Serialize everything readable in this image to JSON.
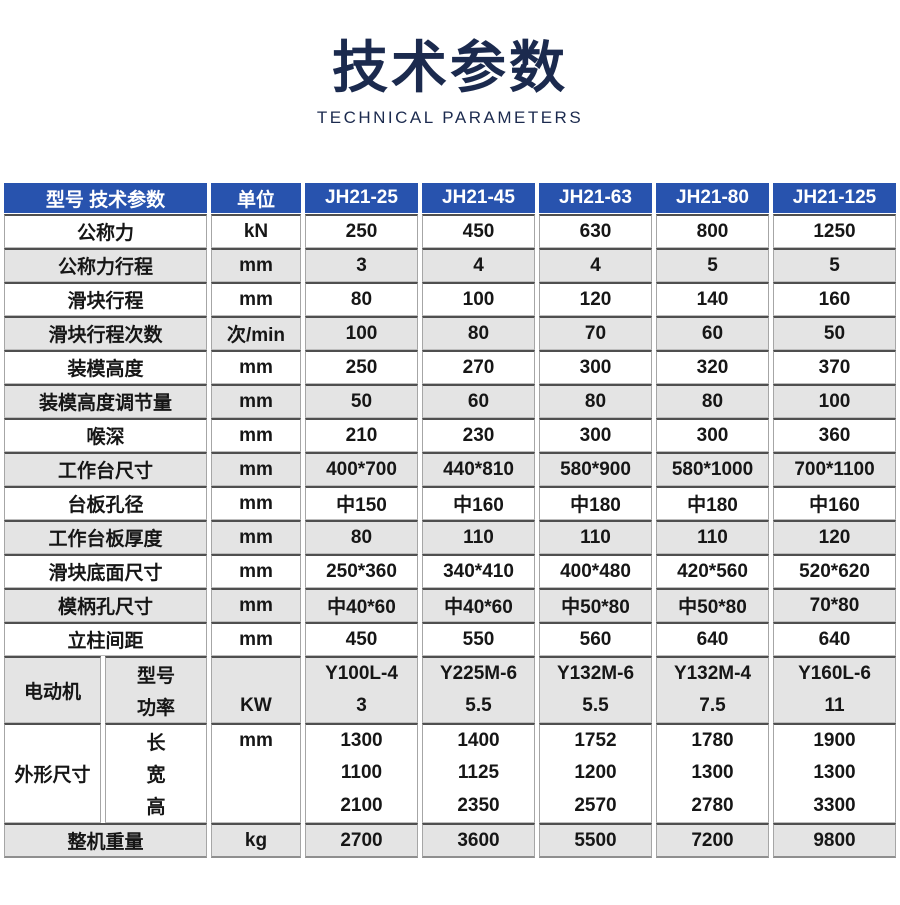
{
  "title": {
    "zh": "技术参数",
    "en": "TECHNICAL PARAMETERS"
  },
  "colors": {
    "header_blue": "#2853ae",
    "title_navy": "#1b2a4e",
    "row_gray": "#e4e4e4",
    "row_separator_dark": "#4f4f4f",
    "column_line_gray": "#a6a6a6"
  },
  "table": {
    "header": {
      "param_label": "型号 技术参数",
      "unit_label": "单位",
      "models": [
        "JH21-25",
        "JH21-45",
        "JH21-63",
        "JH21-80",
        "JH21-125"
      ]
    },
    "rows": [
      {
        "label": "公称力",
        "unit": "kN",
        "values": [
          "250",
          "450",
          "630",
          "800",
          "1250"
        ]
      },
      {
        "label": "公称力行程",
        "unit": "mm",
        "values": [
          "3",
          "4",
          "4",
          "5",
          "5"
        ]
      },
      {
        "label": "滑块行程",
        "unit": "mm",
        "values": [
          "80",
          "100",
          "120",
          "140",
          "160"
        ]
      },
      {
        "label": "滑块行程次数",
        "unit": "次/min",
        "values": [
          "100",
          "80",
          "70",
          "60",
          "50"
        ]
      },
      {
        "label": "装模高度",
        "unit": "mm",
        "values": [
          "250",
          "270",
          "300",
          "320",
          "370"
        ]
      },
      {
        "label": "装模高度调节量",
        "unit": "mm",
        "values": [
          "50",
          "60",
          "80",
          "80",
          "100"
        ]
      },
      {
        "label": "喉深",
        "unit": "mm",
        "values": [
          "210",
          "230",
          "300",
          "300",
          "360"
        ]
      },
      {
        "label": "工作台尺寸",
        "unit": "mm",
        "values": [
          "400*700",
          "440*810",
          "580*900",
          "580*1000",
          "700*1100"
        ]
      },
      {
        "label": "台板孔径",
        "unit": "mm",
        "values": [
          "中150",
          "中160",
          "中180",
          "中180",
          "中160"
        ]
      },
      {
        "label": "工作台板厚度",
        "unit": "mm",
        "values": [
          "80",
          "110",
          "110",
          "110",
          "120"
        ]
      },
      {
        "label": "滑块底面尺寸",
        "unit": "mm",
        "values": [
          "250*360",
          "340*410",
          "400*480",
          "420*560",
          "520*620"
        ]
      },
      {
        "label": "模柄孔尺寸",
        "unit": "mm",
        "values": [
          "中40*60",
          "中40*60",
          "中50*80",
          "中50*80",
          "70*80"
        ]
      },
      {
        "label": "立柱间距",
        "unit": "mm",
        "values": [
          "450",
          "550",
          "560",
          "640",
          "640"
        ]
      }
    ],
    "motor": {
      "group": "电动机",
      "sub": [
        "型号",
        "功率"
      ],
      "units": [
        "",
        "KW"
      ],
      "values": [
        [
          "Y100L-4",
          "3"
        ],
        [
          "Y225M-6",
          "5.5"
        ],
        [
          "Y132M-6",
          "5.5"
        ],
        [
          "Y132M-4",
          "7.5"
        ],
        [
          "Y160L-6",
          "11"
        ]
      ]
    },
    "dimensions": {
      "group": "外形尺寸",
      "sub": [
        "长",
        "宽",
        "高"
      ],
      "units": [
        "mm",
        "",
        ""
      ],
      "values": [
        [
          "1300",
          "1100",
          "2100"
        ],
        [
          "1400",
          "1125",
          "2350"
        ],
        [
          "1752",
          "1200",
          "2570"
        ],
        [
          "1780",
          "1300",
          "2780"
        ],
        [
          "1900",
          "1300",
          "3300"
        ]
      ]
    },
    "weight": {
      "label": "整机重量",
      "unit": "kg",
      "values": [
        "2700",
        "3600",
        "5500",
        "7200",
        "9800"
      ]
    }
  }
}
